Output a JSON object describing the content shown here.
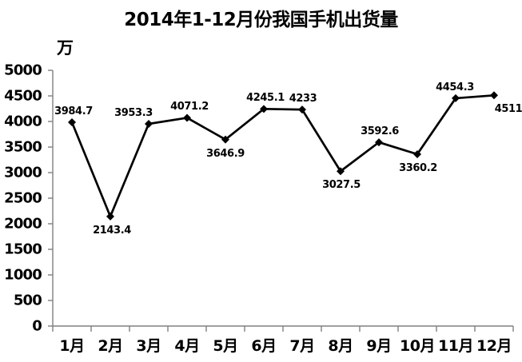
{
  "title": "2014年1-12月份我国手机出货量",
  "chart_data": {
    "type": "line",
    "title": "2014年1-12月份我国手机出货量",
    "ylabel": "万",
    "xlabel": "",
    "categories": [
      "1月",
      "2月",
      "3月",
      "4月",
      "5月",
      "6月",
      "7月",
      "8月",
      "9月",
      "10月",
      "11月",
      "12月"
    ],
    "series": [
      {
        "name": "手机出货量",
        "values": [
          3984.7,
          2143.4,
          3953.3,
          4071.2,
          3646.9,
          4245.1,
          4233,
          3027.5,
          3592.6,
          3360.2,
          4454.3,
          4511
        ],
        "data_labels": [
          "3984.7",
          "2143.4",
          "3953.3",
          "4071.2",
          "3646.9",
          "4245.1",
          "4233",
          "3027.5",
          "3592.6",
          "3360.2",
          "4454.3",
          "4511"
        ],
        "label_positions": [
          "above",
          "below",
          "above",
          "above",
          "below",
          "above",
          "above",
          "below",
          "above",
          "below",
          "above",
          "below"
        ],
        "label_dx": [
          2,
          2,
          -19,
          3,
          0,
          2,
          1,
          1,
          1,
          1,
          -1,
          18
        ]
      }
    ],
    "ylim": [
      0,
      5000
    ],
    "y_tick_step": 500,
    "y_tick_labels": [
      "0",
      "500",
      "1000",
      "1500",
      "2000",
      "2500",
      "3000",
      "3500",
      "4000",
      "4500",
      "5000"
    ],
    "grid": false,
    "legend_position": "none",
    "line_color": "#000000",
    "marker": "diamond",
    "marker_color": "#000000",
    "axis_color": "#808080",
    "text_color": "#000000",
    "background_color": "#ffffff"
  }
}
